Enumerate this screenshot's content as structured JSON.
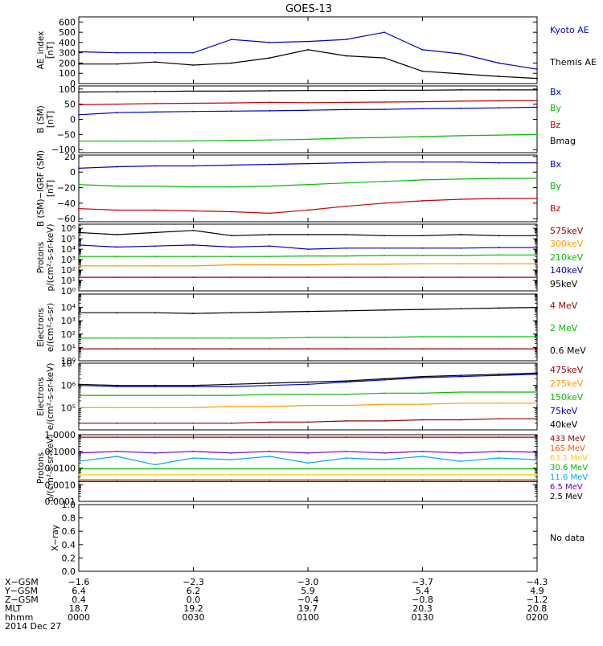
{
  "title": "GOES-13",
  "panels": [
    {
      "id": "ae",
      "ylabel": [
        "AE_index",
        "[nT]"
      ],
      "ylim": [
        0,
        650
      ],
      "ticks": [
        0,
        100,
        200,
        300,
        400,
        500,
        600
      ],
      "ticklabels": [
        "0",
        "100",
        "200",
        "300",
        "400",
        "500",
        "600"
      ],
      "log": false,
      "legend": [
        {
          "text": "Kyoto AE",
          "color": "#0000cc"
        },
        {
          "text": "Themis AE",
          "color": "#000000"
        }
      ]
    },
    {
      "id": "bsm",
      "ylabel": [
        "B (SM)",
        "[nT]"
      ],
      "ylim": [
        -110,
        110
      ],
      "ticks": [
        -100,
        -50,
        0,
        50,
        100
      ],
      "ticklabels": [
        "−100",
        "−50",
        "0",
        "50",
        "100"
      ],
      "log": false,
      "legend": [
        {
          "text": "Bx",
          "color": "#0000cc"
        },
        {
          "text": "By",
          "color": "#00bb00"
        },
        {
          "text": "Bz",
          "color": "#cc0000"
        },
        {
          "text": "Bmag",
          "color": "#000000"
        }
      ]
    },
    {
      "id": "bigrf",
      "ylabel": [
        "B (SM)−IGRF (SM)",
        "[nT]"
      ],
      "ylim": [
        -64,
        22
      ],
      "ticks": [
        -60,
        -40,
        -20,
        0,
        20
      ],
      "ticklabels": [
        "−60",
        "−40",
        "−20",
        "0",
        "20"
      ],
      "log": false,
      "legend": [
        {
          "text": "Bx",
          "color": "#0000cc"
        },
        {
          "text": "By",
          "color": "#00bb00"
        },
        {
          "text": "Bz",
          "color": "#cc0000"
        }
      ]
    },
    {
      "id": "protons",
      "ylabel": [
        "Protons",
        "p/(cm²-s-sr-keV)"
      ],
      "ylim": [
        0,
        6.4
      ],
      "ticks": [
        0,
        1,
        2,
        3,
        4,
        5,
        6
      ],
      "ticklabels": [
        "10⁰",
        "10¹",
        "10²",
        "10³",
        "10⁴",
        "10⁵",
        "10⁶"
      ],
      "log": true,
      "legend": [
        {
          "text": "575keV",
          "color": "#990000"
        },
        {
          "text": "300keV",
          "color": "#ff9900"
        },
        {
          "text": "210keV",
          "color": "#00bb00"
        },
        {
          "text": "140keV",
          "color": "#0000cc"
        },
        {
          "text": "95keV",
          "color": "#000000"
        }
      ]
    },
    {
      "id": "electrons_mev",
      "ylabel": [
        "Electrons",
        "e/(cm²-s-sr)"
      ],
      "ylim": [
        0,
        5
      ],
      "ticks": [
        0,
        1,
        2,
        3,
        4
      ],
      "ticklabels": [
        "10⁰",
        "10¹",
        "10²",
        "10³",
        "10⁴"
      ],
      "log": true,
      "legend": [
        {
          "text": "4 MeV",
          "color": "#990000"
        },
        {
          "text": "2 MeV",
          "color": "#00bb00"
        },
        {
          "text": "0.6 MeV",
          "color": "#000000"
        }
      ]
    },
    {
      "id": "electrons_kev",
      "ylabel": [
        "Electrons",
        "e/(cm²-s-sr-keV)"
      ],
      "ylim": [
        4,
        7
      ],
      "ticks": [
        5,
        6,
        7
      ],
      "ticklabels": [
        "10⁵",
        "10⁶",
        "10⁷"
      ],
      "log": true,
      "legend": [
        {
          "text": "475keV",
          "color": "#990000"
        },
        {
          "text": "275keV",
          "color": "#ff9900"
        },
        {
          "text": "150keV",
          "color": "#00bb00"
        },
        {
          "text": "75keV",
          "color": "#0000cc"
        },
        {
          "text": "40keV",
          "color": "#000000"
        }
      ]
    },
    {
      "id": "protons_mev",
      "ylabel": [
        "Protons",
        "p/(cm²-s-sr-keV)"
      ],
      "ylim": [
        -4,
        0
      ],
      "ticks": [
        -4,
        -3,
        -2,
        -1,
        0
      ],
      "ticklabels": [
        "0.0001",
        "0.0010",
        "0.0100",
        "0.1000",
        "1.0000"
      ],
      "log": true,
      "legend": [
        {
          "text": "433 MeV",
          "color": "#990000"
        },
        {
          "text": "165 MeV",
          "color": "#ff5500"
        },
        {
          "text": "63.1 MeV",
          "color": "#ffcc00"
        },
        {
          "text": "30.6 MeV",
          "color": "#00bb00"
        },
        {
          "text": "11.6 MeV",
          "color": "#00aaee"
        },
        {
          "text": "6.5 MeV",
          "color": "#6600cc"
        },
        {
          "text": "2.5 MeV",
          "color": "#000000"
        }
      ]
    },
    {
      "id": "xray",
      "ylabel": [
        "X−ray"
      ],
      "ylim": [
        0,
        1
      ],
      "ticks": [
        0,
        0.2,
        0.4,
        0.6,
        0.8,
        1
      ],
      "ticklabels": [
        "0.0",
        "0.2",
        "0.4",
        "0.6",
        "0.8",
        "1.0"
      ],
      "log": false,
      "legend": [
        {
          "text": "No data",
          "color": "#000000"
        }
      ]
    }
  ],
  "xaxis": {
    "rows": [
      {
        "label": "X−GSM",
        "values": [
          "−1.6",
          "−2.3",
          "−3.0",
          "−3.7",
          "−4.3"
        ]
      },
      {
        "label": "Y−GSM",
        "values": [
          "6.4",
          "6.2",
          "5.9",
          "5.4",
          "4.9"
        ]
      },
      {
        "label": "Z−GSM",
        "values": [
          "0.4",
          "0.0",
          "−0.4",
          "−0.8",
          "−1.2"
        ]
      },
      {
        "label": "MLT",
        "values": [
          "18.7",
          "19.2",
          "19.7",
          "20.3",
          "20.8"
        ]
      },
      {
        "label": "hhmm",
        "values": [
          "0000",
          "0030",
          "0100",
          "0130",
          "0200"
        ]
      }
    ],
    "date": "2014 Dec 27"
  },
  "chart_data": {
    "type": "line",
    "title": "GOES-13",
    "x": [
      "0000",
      "0010",
      "0020",
      "0030",
      "0040",
      "0050",
      "0100",
      "0110",
      "0120",
      "0130",
      "0140",
      "0150",
      "0200"
    ],
    "panels": [
      {
        "id": "ae",
        "series": [
          {
            "name": "Kyoto AE",
            "values": [
              310,
              300,
              300,
              300,
              430,
              400,
              410,
              430,
              500,
              330,
              290,
              200,
              140
            ]
          },
          {
            "name": "Themis AE",
            "values": [
              190,
              190,
              210,
              180,
              200,
              250,
              330,
              270,
              250,
              120,
              95,
              70,
              50
            ]
          }
        ]
      },
      {
        "id": "bsm",
        "series": [
          {
            "name": "Bx",
            "values": [
              15,
              22,
              24,
              26,
              27,
              28,
              30,
              32,
              33,
              35,
              36,
              38,
              40
            ]
          },
          {
            "name": "By",
            "values": [
              -72,
              -72,
              -72,
              -71,
              -70,
              -68,
              -66,
              -62,
              -60,
              -57,
              -54,
              -52,
              -50
            ]
          },
          {
            "name": "Bz",
            "values": [
              48,
              50,
              52,
              53,
              54,
              56,
              55,
              56,
              57,
              58,
              60,
              61,
              62
            ]
          },
          {
            "name": "Bmag",
            "values": [
              90,
              91,
              92,
              93,
              93,
              94,
              95,
              95,
              96,
              96,
              97,
              97,
              97
            ]
          }
        ]
      },
      {
        "id": "bigrf",
        "series": [
          {
            "name": "Bx",
            "values": [
              5,
              7,
              8,
              8,
              9,
              10,
              11,
              12,
              13,
              13,
              13,
              12,
              12
            ]
          },
          {
            "name": "By",
            "values": [
              -16,
              -18,
              -18,
              -19,
              -19,
              -18,
              -16,
              -14,
              -12,
              -10,
              -9,
              -8,
              -8
            ]
          },
          {
            "name": "Bz",
            "values": [
              -47,
              -49,
              -49,
              -50,
              -51,
              -53,
              -49,
              -44,
              -40,
              -37,
              -35,
              -34,
              -34
            ]
          }
        ]
      },
      {
        "id": "protons",
        "series": [
          {
            "name": "575keV",
            "values": [
              1.3,
              1.3,
              1.3,
              1.3,
              1.3,
              1.3,
              1.3,
              1.3,
              1.3,
              1.3,
              1.3,
              1.3,
              1.3
            ]
          },
          {
            "name": "300keV",
            "values": [
              2.4,
              2.4,
              2.4,
              2.4,
              2.5,
              2.5,
              2.5,
              2.55,
              2.55,
              2.6,
              2.6,
              2.6,
              2.6
            ]
          },
          {
            "name": "210keV",
            "values": [
              3.3,
              3.3,
              3.3,
              3.3,
              3.3,
              3.3,
              3.35,
              3.35,
              3.4,
              3.4,
              3.4,
              3.45,
              3.45
            ]
          },
          {
            "name": "140keV",
            "values": [
              4.4,
              4.2,
              4.3,
              4.4,
              4.2,
              4.3,
              4.0,
              4.1,
              4.1,
              4.1,
              4.1,
              4.15,
              4.15
            ]
          },
          {
            "name": "95keV",
            "values": [
              5.6,
              5.4,
              5.6,
              5.8,
              5.3,
              5.4,
              5.4,
              5.4,
              5.3,
              5.3,
              5.4,
              5.3,
              5.3
            ]
          }
        ]
      },
      {
        "id": "electrons_mev",
        "series": [
          {
            "name": "4 MeV",
            "values": [
              0.9,
              0.9,
              0.9,
              0.9,
              0.9,
              0.9,
              0.9,
              0.9,
              0.9,
              0.9,
              0.9,
              0.9,
              0.9
            ]
          },
          {
            "name": "2 MeV",
            "values": [
              1.7,
              1.7,
              1.7,
              1.7,
              1.7,
              1.7,
              1.75,
              1.75,
              1.75,
              1.8,
              1.8,
              1.8,
              1.8
            ]
          },
          {
            "name": "0.6 MeV",
            "values": [
              3.6,
              3.6,
              3.6,
              3.55,
              3.6,
              3.65,
              3.7,
              3.75,
              3.8,
              3.85,
              3.9,
              3.95,
              4.0
            ]
          }
        ]
      },
      {
        "id": "electrons_kev",
        "series": [
          {
            "name": "475keV",
            "values": [
              4.3,
              4.3,
              4.3,
              4.3,
              4.3,
              4.35,
              4.35,
              4.4,
              4.4,
              4.45,
              4.45,
              4.5,
              4.5
            ]
          },
          {
            "name": "275keV",
            "values": [
              5.0,
              5.0,
              5.0,
              5.0,
              5.05,
              5.05,
              5.1,
              5.1,
              5.15,
              5.15,
              5.2,
              5.2,
              5.2
            ]
          },
          {
            "name": "150keV",
            "values": [
              5.55,
              5.55,
              5.55,
              5.55,
              5.55,
              5.6,
              5.6,
              5.6,
              5.65,
              5.65,
              5.7,
              5.7,
              5.7
            ]
          },
          {
            "name": "75keV",
            "values": [
              6.0,
              5.95,
              5.95,
              5.95,
              5.95,
              6.0,
              6.05,
              6.15,
              6.25,
              6.35,
              6.4,
              6.45,
              6.5
            ]
          },
          {
            "name": "40keV",
            "values": [
              6.05,
              6.0,
              6.0,
              6.0,
              6.05,
              6.1,
              6.15,
              6.2,
              6.3,
              6.4,
              6.45,
              6.5,
              6.55
            ]
          }
        ]
      },
      {
        "id": "protons_mev",
        "series": [
          {
            "name": "433 MeV",
            "values": [
              -0.15,
              -0.15,
              -0.15,
              -0.15,
              -0.15,
              -0.15,
              -0.15,
              -0.15,
              -0.15,
              -0.15,
              -0.15,
              -0.15,
              -0.15
            ]
          },
          {
            "name": "165 MeV",
            "values": [
              -2.7,
              -2.7,
              -2.7,
              -2.7,
              -2.7,
              -2.7,
              -2.7,
              -2.7,
              -2.7,
              -2.7,
              -2.7,
              -2.7,
              -2.7
            ]
          },
          {
            "name": "63.1 MeV",
            "values": [
              -2.4,
              -2.4,
              -2.4,
              -2.4,
              -2.4,
              -2.4,
              -2.4,
              -2.4,
              -2.4,
              -2.4,
              -2.4,
              -2.4,
              -2.4
            ]
          },
          {
            "name": "30.6 MeV",
            "values": [
              -2.05,
              -2.05,
              -2.05,
              -2.05,
              -2.05,
              -2.05,
              -2.05,
              -2.05,
              -2.05,
              -2.05,
              -2.05,
              -2.05,
              -2.05
            ]
          },
          {
            "name": "11.6 MeV",
            "values": [
              -1.6,
              -1.3,
              -1.8,
              -1.4,
              -1.5,
              -1.3,
              -1.7,
              -1.4,
              -1.5,
              -1.3,
              -1.6,
              -1.4,
              -1.5
            ]
          },
          {
            "name": "6.5 MeV",
            "values": [
              -1.1,
              -1.0,
              -1.1,
              -1.0,
              -1.1,
              -1.0,
              -1.1,
              -1.0,
              -1.1,
              -1.0,
              -1.1,
              -1.0,
              -1.05
            ]
          },
          {
            "name": "2.5 MeV",
            "values": [
              -2.8,
              -2.8,
              -2.8,
              -2.8,
              -2.8,
              -2.8,
              -2.8,
              -2.8,
              -2.8,
              -2.8,
              -2.8,
              -2.8,
              -2.8
            ]
          }
        ]
      },
      {
        "id": "xray",
        "series": []
      }
    ]
  }
}
